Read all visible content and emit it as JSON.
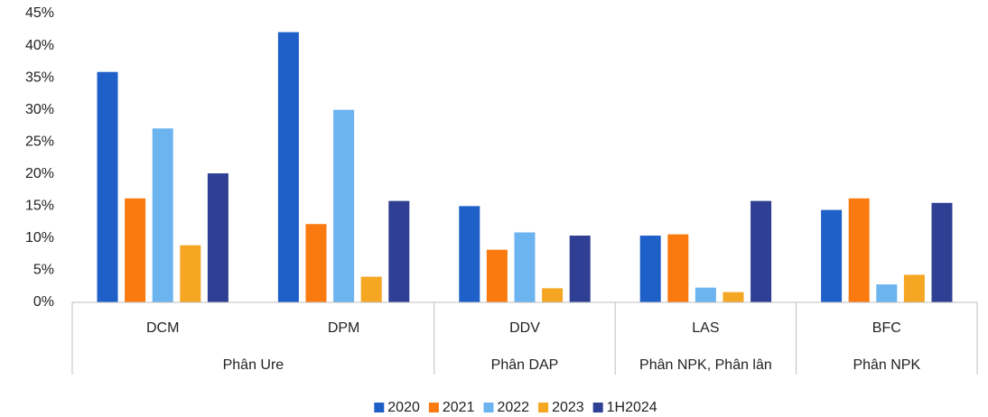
{
  "chart_data": {
    "type": "bar",
    "categories": [
      "DCM",
      "DPM",
      "DDV",
      "LAS",
      "BFC"
    ],
    "category_groups": [
      {
        "name": "Phân Ure",
        "categories": [
          "DCM",
          "DPM"
        ]
      },
      {
        "name": "Phân DAP",
        "categories": [
          "DDV"
        ]
      },
      {
        "name": "Phân NPK, Phân lân",
        "categories": [
          "LAS"
        ]
      },
      {
        "name": "Phân NPK",
        "categories": [
          "BFC"
        ]
      }
    ],
    "series": [
      {
        "name": "2020",
        "color": "#1f5fc8",
        "values": [
          35.9,
          42.1,
          15.0,
          10.4,
          14.4
        ]
      },
      {
        "name": "2021",
        "color": "#fb7a10",
        "values": [
          16.2,
          12.2,
          8.2,
          10.6,
          16.2
        ]
      },
      {
        "name": "2022",
        "color": "#6cb4f0",
        "values": [
          27.1,
          30.0,
          10.9,
          2.3,
          2.8
        ]
      },
      {
        "name": "2023",
        "color": "#f5a623",
        "values": [
          8.9,
          4.0,
          2.2,
          1.6,
          4.3
        ]
      },
      {
        "name": "1H2024",
        "color": "#2e3f94",
        "values": [
          20.1,
          15.8,
          10.4,
          15.8,
          15.5
        ]
      }
    ],
    "ylim": [
      0,
      45
    ],
    "yticks": [
      {
        "value": 0,
        "label": "0%"
      },
      {
        "value": 5,
        "label": "5%"
      },
      {
        "value": 10,
        "label": "10%"
      },
      {
        "value": 15,
        "label": "15%"
      },
      {
        "value": 20,
        "label": "20%"
      },
      {
        "value": 25,
        "label": "25%"
      },
      {
        "value": 30,
        "label": "30%"
      },
      {
        "value": 35,
        "label": "35%"
      },
      {
        "value": 40,
        "label": "40%"
      },
      {
        "value": 45,
        "label": "45%"
      }
    ],
    "grid": false,
    "legend": "bottom"
  }
}
